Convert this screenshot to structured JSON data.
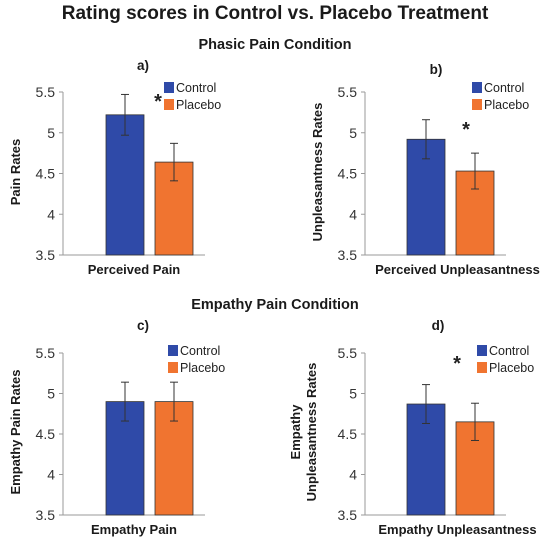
{
  "title": "Rating scores in Control vs. Placebo Treatment",
  "sections": [
    {
      "title": "Phasic Pain Condition"
    },
    {
      "title": "Empathy Pain Condition"
    }
  ],
  "colors": {
    "control": "#2f4aa8",
    "placebo": "#f07430"
  },
  "chart_data": [
    {
      "type": "bar",
      "panel_label": "a)",
      "xlabel": "Perceived Pain",
      "ylabel": "Pain Rates",
      "ylim": [
        3.5,
        5.5
      ],
      "yticks": [
        "3.5",
        "4",
        "4.5",
        "5",
        "5.5"
      ],
      "legend": "top-right",
      "grid": false,
      "series": [
        {
          "name": "Control",
          "value": 5.22,
          "error": 0.25
        },
        {
          "name": "Placebo",
          "value": 4.64,
          "error": 0.23
        }
      ],
      "annotation": "*"
    },
    {
      "type": "bar",
      "panel_label": "b)",
      "xlabel": "Perceived Unpleasantness",
      "ylabel": "Unpleasantness Rates",
      "ylim": [
        3.5,
        5.5
      ],
      "yticks": [
        "3.5",
        "4",
        "4.5",
        "5",
        "5.5"
      ],
      "legend": "top-right",
      "grid": false,
      "series": [
        {
          "name": "Control",
          "value": 4.92,
          "error": 0.24
        },
        {
          "name": "Placebo",
          "value": 4.53,
          "error": 0.22
        }
      ],
      "annotation": "*"
    },
    {
      "type": "bar",
      "panel_label": "c)",
      "xlabel": "Empathy Pain",
      "ylabel": "Empathy Pain Rates",
      "ylim": [
        3.5,
        5.5
      ],
      "yticks": [
        "3.5",
        "4",
        "4.5",
        "5",
        "5.5"
      ],
      "legend": "top-right",
      "grid": false,
      "series": [
        {
          "name": "Control",
          "value": 4.9,
          "error": 0.24
        },
        {
          "name": "Placebo",
          "value": 4.9,
          "error": 0.24
        }
      ],
      "annotation": ""
    },
    {
      "type": "bar",
      "panel_label": "d)",
      "xlabel": "Empathy Unpleasantness",
      "ylabel": "Empathy Unpleasantness Rates",
      "ylabel_lines": [
        "Empathy",
        "Unpleasantness Rates"
      ],
      "ylim": [
        3.5,
        5.5
      ],
      "yticks": [
        "3.5",
        "4",
        "4.5",
        "5",
        "5.5"
      ],
      "legend": "top-right",
      "grid": false,
      "series": [
        {
          "name": "Control",
          "value": 4.87,
          "error": 0.24
        },
        {
          "name": "Placebo",
          "value": 4.65,
          "error": 0.23
        }
      ],
      "annotation": "*"
    }
  ]
}
